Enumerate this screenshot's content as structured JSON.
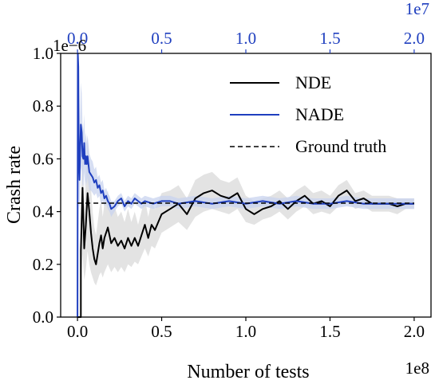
{
  "chart_data": {
    "type": "line",
    "ylabel": "Crash rate",
    "xlabel": "Number of tests",
    "y_offset_label": "1e−6",
    "x_offset_label": "1e8",
    "top_x_offset_label": "1e7",
    "xlim": [
      -0.1,
      2.1
    ],
    "ylim": [
      0,
      1.0
    ],
    "x_ticks": [
      0.0,
      0.5,
      1.0,
      1.5,
      2.0
    ],
    "x_tick_labels": [
      "0.0",
      "0.5",
      "1.0",
      "1.5",
      "2.0"
    ],
    "y_ticks": [
      0.0,
      0.2,
      0.4,
      0.6,
      0.8,
      1.0
    ],
    "y_tick_labels": [
      "0.0",
      "0.2",
      "0.4",
      "0.6",
      "0.8",
      "1.0"
    ],
    "top_x_ticks": [
      0.0,
      0.5,
      1.0,
      1.5,
      2.0
    ],
    "top_x_tick_labels": [
      "0.0",
      "0.5",
      "1.0",
      "1.5",
      "2.0"
    ],
    "top_xlim": [
      -0.1,
      2.1
    ],
    "legend_position": "top-right",
    "colors": {
      "nde": "#000000",
      "nade": "#1f3fbf",
      "nde_band": "#d9d9d9",
      "nade_band": "#c8d3ef",
      "ground_truth": "#000000",
      "top_axis": "#1f3fbf"
    },
    "series": [
      {
        "name": "NDE",
        "axis": "bottom",
        "x": [
          0.0,
          0.02,
          0.02,
          0.03,
          0.04,
          0.05,
          0.06,
          0.07,
          0.08,
          0.09,
          0.1,
          0.11,
          0.12,
          0.13,
          0.14,
          0.15,
          0.16,
          0.18,
          0.2,
          0.22,
          0.24,
          0.26,
          0.28,
          0.3,
          0.32,
          0.34,
          0.36,
          0.38,
          0.4,
          0.42,
          0.44,
          0.46,
          0.48,
          0.5,
          0.55,
          0.6,
          0.65,
          0.7,
          0.75,
          0.8,
          0.85,
          0.9,
          0.95,
          1.0,
          1.05,
          1.1,
          1.15,
          1.2,
          1.25,
          1.3,
          1.35,
          1.4,
          1.45,
          1.5,
          1.55,
          1.6,
          1.65,
          1.7,
          1.75,
          1.8,
          1.85,
          1.9,
          1.95,
          2.0
        ],
        "values": [
          0.0,
          0.0,
          0.25,
          0.49,
          0.26,
          0.35,
          0.47,
          0.4,
          0.32,
          0.26,
          0.22,
          0.2,
          0.24,
          0.28,
          0.31,
          0.26,
          0.3,
          0.34,
          0.28,
          0.3,
          0.27,
          0.29,
          0.26,
          0.3,
          0.27,
          0.3,
          0.27,
          0.31,
          0.35,
          0.3,
          0.35,
          0.33,
          0.36,
          0.39,
          0.41,
          0.43,
          0.39,
          0.45,
          0.47,
          0.48,
          0.46,
          0.45,
          0.47,
          0.41,
          0.39,
          0.41,
          0.42,
          0.44,
          0.41,
          0.44,
          0.46,
          0.43,
          0.44,
          0.42,
          0.46,
          0.48,
          0.44,
          0.45,
          0.43,
          0.43,
          0.43,
          0.42,
          0.43,
          0.43
        ],
        "lower": [
          0.0,
          0.0,
          0.12,
          0.24,
          0.14,
          0.18,
          0.25,
          0.2,
          0.17,
          0.15,
          0.13,
          0.12,
          0.14,
          0.16,
          0.17,
          0.15,
          0.17,
          0.2,
          0.17,
          0.19,
          0.17,
          0.19,
          0.17,
          0.2,
          0.19,
          0.21,
          0.2,
          0.23,
          0.26,
          0.23,
          0.27,
          0.26,
          0.29,
          0.32,
          0.34,
          0.36,
          0.33,
          0.38,
          0.4,
          0.41,
          0.4,
          0.39,
          0.41,
          0.36,
          0.35,
          0.37,
          0.38,
          0.4,
          0.37,
          0.4,
          0.42,
          0.39,
          0.4,
          0.39,
          0.42,
          0.44,
          0.41,
          0.42,
          0.4,
          0.4,
          0.4,
          0.39,
          0.41,
          0.41
        ],
        "upper": [
          0.0,
          0.0,
          0.38,
          0.74,
          0.4,
          0.52,
          0.69,
          0.6,
          0.49,
          0.4,
          0.34,
          0.31,
          0.36,
          0.41,
          0.45,
          0.38,
          0.43,
          0.48,
          0.4,
          0.42,
          0.38,
          0.4,
          0.36,
          0.41,
          0.36,
          0.4,
          0.35,
          0.4,
          0.45,
          0.38,
          0.44,
          0.41,
          0.44,
          0.47,
          0.48,
          0.5,
          0.45,
          0.52,
          0.54,
          0.55,
          0.52,
          0.51,
          0.53,
          0.46,
          0.44,
          0.45,
          0.46,
          0.48,
          0.45,
          0.48,
          0.5,
          0.47,
          0.48,
          0.46,
          0.5,
          0.52,
          0.47,
          0.48,
          0.46,
          0.46,
          0.46,
          0.45,
          0.45,
          0.45
        ]
      },
      {
        "name": "NADE",
        "axis": "top",
        "x": [
          0.0,
          0.002,
          0.005,
          0.008,
          0.012,
          0.015,
          0.02,
          0.025,
          0.03,
          0.035,
          0.04,
          0.045,
          0.05,
          0.055,
          0.06,
          0.07,
          0.08,
          0.09,
          0.1,
          0.11,
          0.12,
          0.13,
          0.14,
          0.15,
          0.16,
          0.17,
          0.18,
          0.19,
          0.2,
          0.22,
          0.24,
          0.26,
          0.28,
          0.3,
          0.32,
          0.34,
          0.36,
          0.38,
          0.4,
          0.45,
          0.5,
          0.55,
          0.6,
          0.7,
          0.8,
          0.9,
          1.0,
          1.1,
          1.2,
          1.3,
          1.4,
          1.5,
          1.6,
          1.7,
          1.8,
          1.9,
          2.0
        ],
        "values": [
          0.0,
          1.0,
          0.95,
          0.6,
          0.52,
          0.62,
          0.73,
          0.7,
          0.61,
          0.6,
          0.66,
          0.58,
          0.61,
          0.58,
          0.61,
          0.55,
          0.54,
          0.53,
          0.51,
          0.52,
          0.49,
          0.5,
          0.47,
          0.48,
          0.45,
          0.46,
          0.44,
          0.43,
          0.41,
          0.42,
          0.44,
          0.45,
          0.42,
          0.44,
          0.43,
          0.45,
          0.44,
          0.43,
          0.44,
          0.43,
          0.44,
          0.44,
          0.43,
          0.44,
          0.43,
          0.44,
          0.43,
          0.44,
          0.43,
          0.44,
          0.43,
          0.43,
          0.44,
          0.43,
          0.43,
          0.43,
          0.43
        ],
        "lower": [
          0.0,
          0.9,
          0.75,
          0.45,
          0.4,
          0.48,
          0.57,
          0.55,
          0.5,
          0.5,
          0.55,
          0.49,
          0.52,
          0.5,
          0.53,
          0.48,
          0.48,
          0.47,
          0.46,
          0.47,
          0.45,
          0.46,
          0.43,
          0.44,
          0.42,
          0.43,
          0.41,
          0.4,
          0.38,
          0.4,
          0.42,
          0.43,
          0.4,
          0.42,
          0.41,
          0.43,
          0.42,
          0.41,
          0.42,
          0.41,
          0.42,
          0.42,
          0.41,
          0.42,
          0.41,
          0.42,
          0.41,
          0.42,
          0.41,
          0.42,
          0.41,
          0.41,
          0.42,
          0.41,
          0.41,
          0.41,
          0.41
        ],
        "upper": [
          0.0,
          1.0,
          1.0,
          0.75,
          0.65,
          0.76,
          0.89,
          0.85,
          0.73,
          0.71,
          0.77,
          0.67,
          0.7,
          0.66,
          0.69,
          0.62,
          0.6,
          0.59,
          0.56,
          0.57,
          0.53,
          0.54,
          0.51,
          0.52,
          0.48,
          0.49,
          0.47,
          0.46,
          0.44,
          0.44,
          0.46,
          0.47,
          0.44,
          0.46,
          0.45,
          0.47,
          0.46,
          0.45,
          0.46,
          0.45,
          0.46,
          0.46,
          0.45,
          0.46,
          0.45,
          0.46,
          0.45,
          0.46,
          0.45,
          0.46,
          0.45,
          0.45,
          0.46,
          0.45,
          0.45,
          0.45,
          0.45
        ]
      },
      {
        "name": "Ground truth",
        "axis": "bottom",
        "x": [
          0.0,
          2.0
        ],
        "values": [
          0.432,
          0.432
        ]
      }
    ]
  }
}
